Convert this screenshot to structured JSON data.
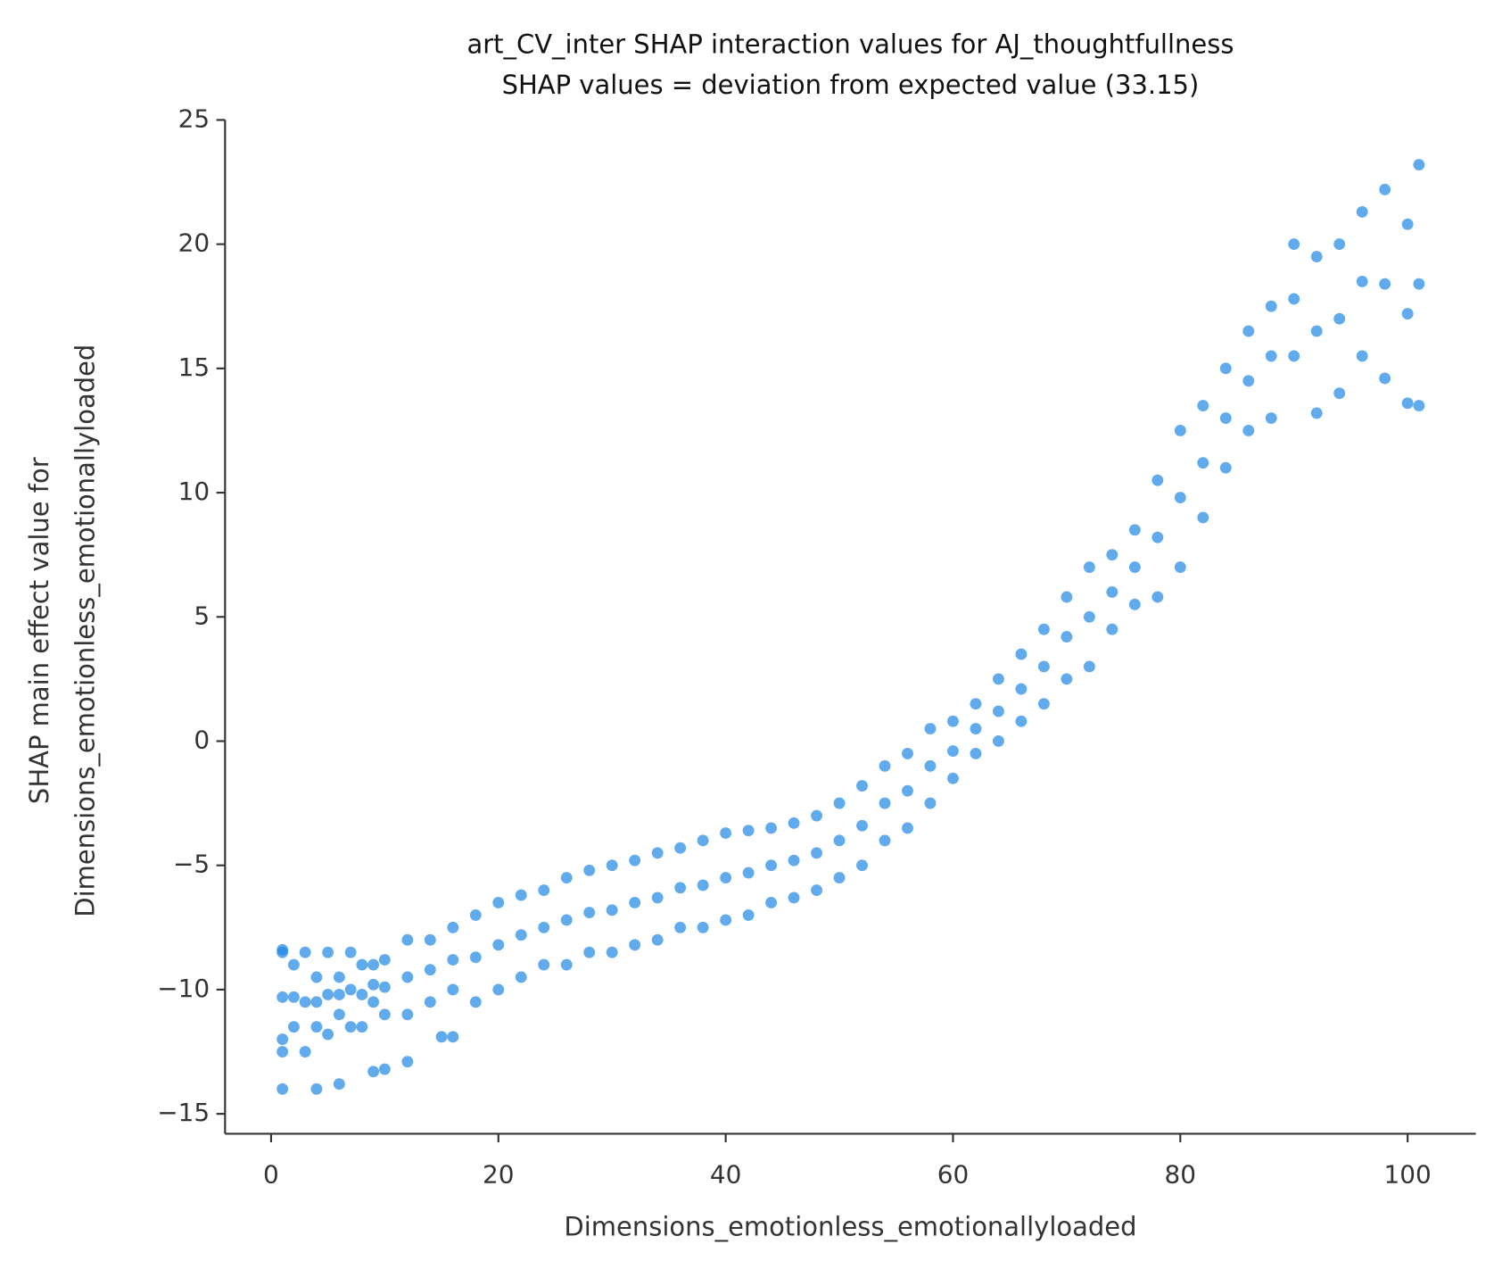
{
  "chart_data": {
    "type": "scatter",
    "title": "art_CV_inter SHAP interaction values for AJ_thoughtfullness",
    "subtitle": "SHAP values = deviation from expected value (33.15)",
    "xlabel": "Dimensions_emotionless_emotionallyloaded",
    "ylabel": [
      "SHAP main effect value for",
      "Dimensions_emotionless_emotionallyloaded"
    ],
    "color": "#1e88e5",
    "xlim": [
      -4.05,
      106
    ],
    "ylim": [
      -15.8,
      25
    ],
    "xticks": [
      0,
      20,
      40,
      60,
      80,
      100
    ],
    "yticks": [
      {
        "value": -15,
        "label": "−15"
      },
      {
        "value": -10,
        "label": "−10"
      },
      {
        "value": -5,
        "label": "−5"
      },
      0,
      5,
      10,
      15,
      20,
      25
    ],
    "x": [
      1,
      1,
      1,
      2,
      2,
      2,
      3,
      3,
      3,
      4,
      4,
      4,
      5,
      5,
      5,
      6,
      6,
      6,
      7,
      7,
      7,
      8,
      8,
      8,
      9,
      9,
      9,
      10,
      10,
      10,
      12,
      12,
      12,
      14,
      14,
      14,
      16,
      16,
      16,
      18,
      18,
      18,
      20,
      20,
      20,
      22,
      22,
      22,
      24,
      24,
      24,
      26,
      26,
      26,
      28,
      28,
      28,
      30,
      30,
      30,
      32,
      32,
      32,
      34,
      34,
      34,
      36,
      36,
      36,
      38,
      38,
      38,
      40,
      40,
      40,
      42,
      42,
      42,
      44,
      44,
      44,
      46,
      46,
      46,
      48,
      48,
      48,
      50,
      50,
      50,
      52,
      52,
      52,
      54,
      54,
      54,
      56,
      56,
      56,
      58,
      58,
      58,
      60,
      60,
      60,
      62,
      62,
      62,
      64,
      64,
      64,
      66,
      66,
      66,
      68,
      68,
      68,
      70,
      70,
      70,
      72,
      72,
      72,
      74,
      74,
      74,
      76,
      76,
      76,
      78,
      78,
      78,
      80,
      80,
      80,
      82,
      82,
      82,
      84,
      84,
      84,
      86,
      86,
      86,
      88,
      88,
      88,
      90,
      90,
      90,
      92,
      92,
      92,
      94,
      94,
      94,
      96,
      96,
      96,
      98,
      98,
      98,
      100,
      100,
      100,
      101,
      101,
      101,
      1,
      4,
      6,
      9,
      10,
      12,
      15,
      16,
      1,
      1
    ],
    "values": [
      -12,
      -10.3,
      -8.5,
      -11.5,
      -10.3,
      -9,
      -12.5,
      -10.5,
      -8.5,
      -11.5,
      -10.5,
      -9.5,
      -11.8,
      -10.2,
      -8.5,
      -11,
      -10.2,
      -9.5,
      -11.5,
      -10,
      -8.5,
      -11.5,
      -10.2,
      -9,
      -10.5,
      -9.8,
      -9,
      -11,
      -9.9,
      -8.8,
      -11,
      -9.5,
      -8,
      -10.5,
      -9.2,
      -8,
      -10,
      -8.8,
      -7.5,
      -10.5,
      -8.7,
      -7,
      -10,
      -8.2,
      -6.5,
      -9.5,
      -7.8,
      -6.2,
      -9,
      -7.5,
      -6,
      -9,
      -7.2,
      -5.5,
      -8.5,
      -6.9,
      -5.2,
      -8.5,
      -6.8,
      -5,
      -8.2,
      -6.5,
      -4.8,
      -8,
      -6.3,
      -4.5,
      -7.5,
      -5.9,
      -4.3,
      -7.5,
      -5.8,
      -4,
      -7.2,
      -5.5,
      -3.7,
      -7,
      -5.3,
      -3.6,
      -6.5,
      -5,
      -3.5,
      -6.3,
      -4.8,
      -3.3,
      -6,
      -4.5,
      -3,
      -5.5,
      -4,
      -2.5,
      -5,
      -3.4,
      -1.8,
      -4,
      -2.5,
      -1,
      -3.5,
      -2,
      -0.5,
      -2.5,
      -1,
      0.5,
      -1.5,
      -0.4,
      0.8,
      -0.5,
      0.5,
      1.5,
      0,
      1.2,
      2.5,
      0.8,
      2.1,
      3.5,
      1.5,
      3,
      4.5,
      2.5,
      4.2,
      5.8,
      3,
      5,
      7,
      4.5,
      6,
      7.5,
      5.5,
      7,
      8.5,
      5.8,
      8.2,
      10.5,
      7,
      9.8,
      12.5,
      9,
      11.2,
      13.5,
      11,
      13,
      15,
      12.5,
      14.5,
      16.5,
      13,
      15.5,
      17.5,
      15.5,
      17.8,
      20,
      13.2,
      16.5,
      19.5,
      14,
      17,
      20,
      15.5,
      18.5,
      21.3,
      14.6,
      18.4,
      22.2,
      13.6,
      17.2,
      20.8,
      13.5,
      18.4,
      23.2,
      -14,
      -14,
      -13.8,
      -13.3,
      -13.2,
      -12.9,
      -11.9,
      -11.9,
      -8.4,
      -12.5
    ]
  }
}
